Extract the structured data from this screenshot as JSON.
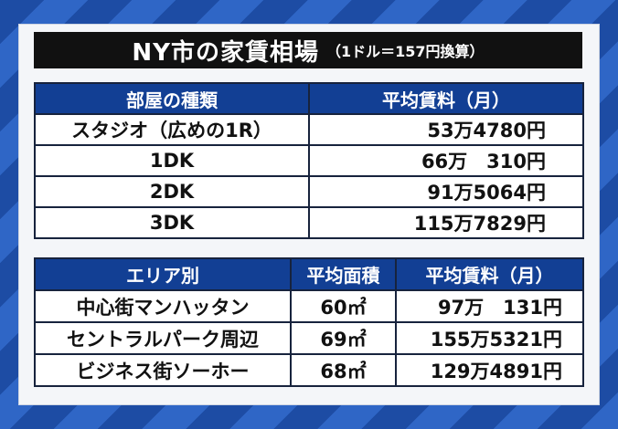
{
  "title": {
    "main": "NY市の家賃相場",
    "note": "（1ドル＝157円換算）"
  },
  "room_table": {
    "headers": [
      "部屋の種類",
      "平均賃料（月）"
    ],
    "rows": [
      [
        "スタジオ（広めの1R）",
        "53万4780円"
      ],
      [
        "1DK",
        "66万　310円"
      ],
      [
        "2DK",
        "91万5064円"
      ],
      [
        "3DK",
        "115万7829円"
      ]
    ]
  },
  "area_table": {
    "headers": [
      "エリア別",
      "平均面積",
      "平均賃料（月）"
    ],
    "rows": [
      [
        "中心街マンハッタン",
        "60㎡",
        "97万　131円"
      ],
      [
        "セントラルパーク周辺",
        "69㎡",
        "155万5321円"
      ],
      [
        "ビジネス街ソーホー",
        "68㎡",
        "129万4891円"
      ]
    ]
  },
  "colors": {
    "background_stripe_dark": "#1d4ca4",
    "background_stripe_light": "#2f66c6",
    "header_blue": "#123f94",
    "title_bar": "#111111"
  }
}
